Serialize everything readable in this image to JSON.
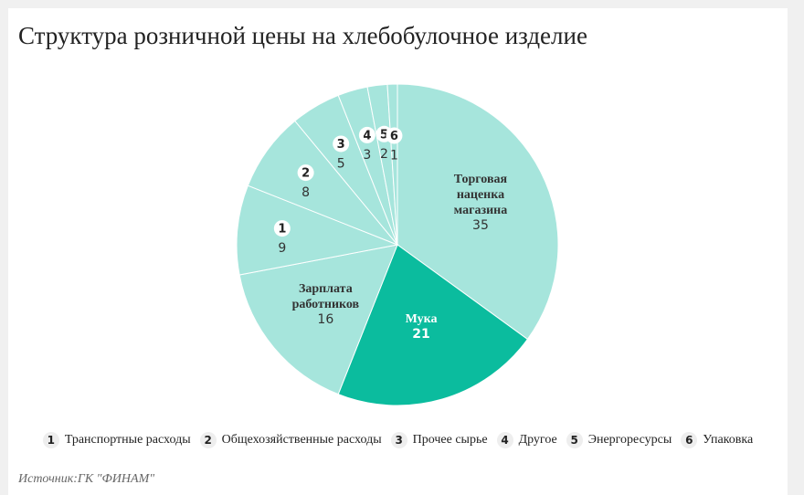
{
  "title": "Структура розничной цены на хлебобулочное изделие",
  "source": "Источник:ГК \"ФИНАМ\"",
  "colors": {
    "light": "#a6e5dc",
    "dark": "#0bbc9e",
    "stroke": "#ffffff"
  },
  "chart_data": {
    "type": "pie",
    "title": "Структура розничной цены на хлебобулочное изделие",
    "slices": [
      {
        "label": "Торговая наценка магазина",
        "value": 35,
        "color": "#a6e5dc",
        "badge": ""
      },
      {
        "label": "Мука",
        "value": 21,
        "color": "#0bbc9e",
        "badge": ""
      },
      {
        "label": "Зарплата работников",
        "value": 16,
        "color": "#a6e5dc",
        "badge": ""
      },
      {
        "label": "Транспортные расходы",
        "value": 9,
        "color": "#a6e5dc",
        "badge": "1"
      },
      {
        "label": "Общехозяйственные расходы",
        "value": 8,
        "color": "#a6e5dc",
        "badge": "2"
      },
      {
        "label": "Прочее сырье",
        "value": 5,
        "color": "#a6e5dc",
        "badge": "3"
      },
      {
        "label": "Другое",
        "value": 3,
        "color": "#a6e5dc",
        "badge": "4"
      },
      {
        "label": "Энергоресурсы",
        "value": 2,
        "color": "#a6e5dc",
        "badge": "5"
      },
      {
        "label": "Упаковка",
        "value": 1,
        "color": "#a6e5dc",
        "badge": "6"
      }
    ]
  },
  "legend": [
    {
      "num": "1",
      "label": "Транспортные расходы"
    },
    {
      "num": "2",
      "label": "Общехозяйственные расходы"
    },
    {
      "num": "3",
      "label": "Прочее сырье"
    },
    {
      "num": "4",
      "label": "Другое"
    },
    {
      "num": "5",
      "label": "Энергоресурсы"
    },
    {
      "num": "6",
      "label": "Упаковка"
    }
  ]
}
